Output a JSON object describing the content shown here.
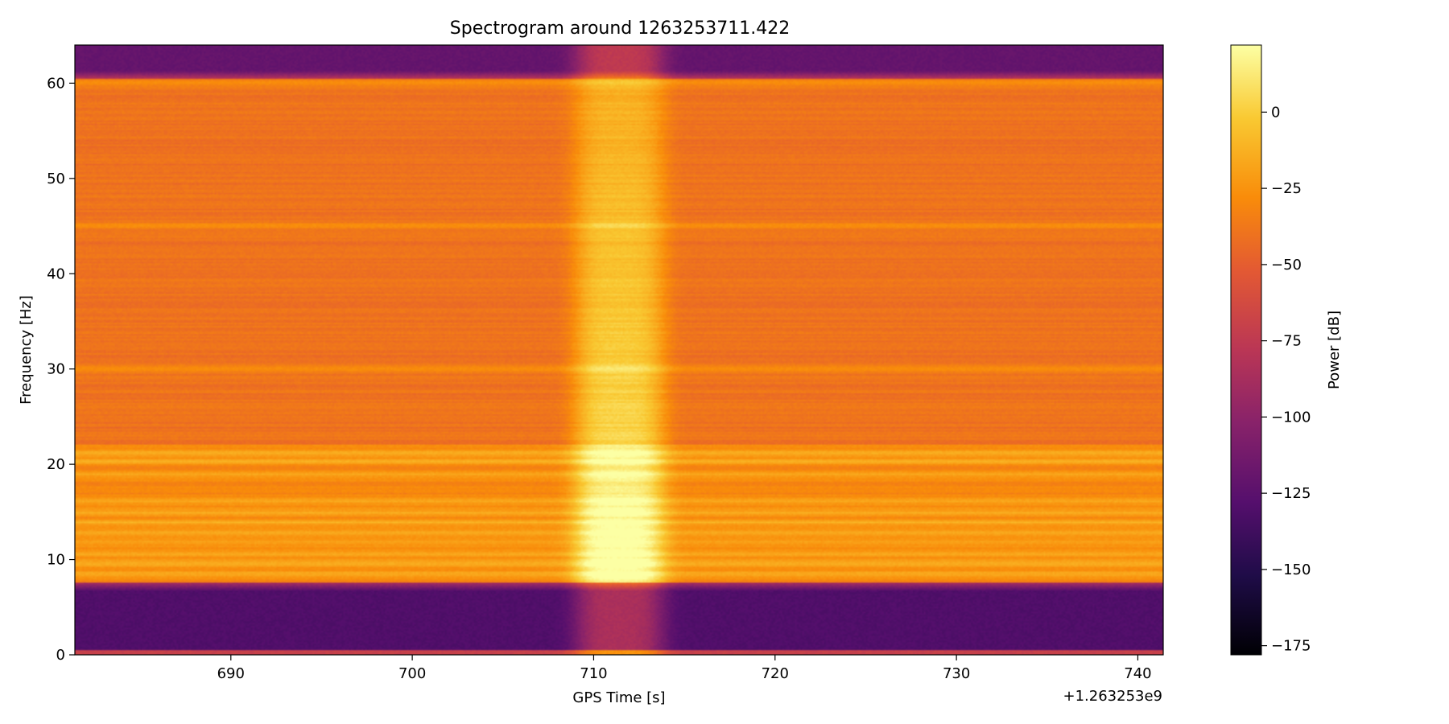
{
  "chart_data": {
    "type": "heatmap",
    "title": "Spectrogram around 1263253711.422",
    "xlabel": "GPS Time [s]",
    "ylabel": "Frequency [Hz]",
    "x_offset_label": "+1.263253e9",
    "xlim": [
      681.4,
      741.4
    ],
    "ylim": [
      0,
      64
    ],
    "x_ticks": [
      690,
      700,
      710,
      720,
      730,
      740
    ],
    "y_ticks": [
      0,
      10,
      20,
      30,
      40,
      50,
      60
    ],
    "colorbar": {
      "label": "Power [dB]",
      "colormap": "inferno",
      "range": [
        -178,
        22
      ],
      "ticks": [
        0,
        -25,
        -50,
        -75,
        -100,
        -125,
        -150,
        -175
      ]
    },
    "features": {
      "glitch_center_time": 711.422,
      "glitch_time_width": [
        708,
        716
      ],
      "glitch_peak_power_db": 15,
      "background_band_hz": [
        7.5,
        60.5
      ],
      "background_power_db": -40,
      "low_band_power_db": -130,
      "high_band_power_db": -120,
      "lines_hz": [
        8.5,
        9.6,
        10.7,
        11.8,
        12.8,
        13.9,
        15.0,
        16.1,
        18.9,
        20.3,
        21.2,
        30,
        45,
        60
      ]
    }
  }
}
